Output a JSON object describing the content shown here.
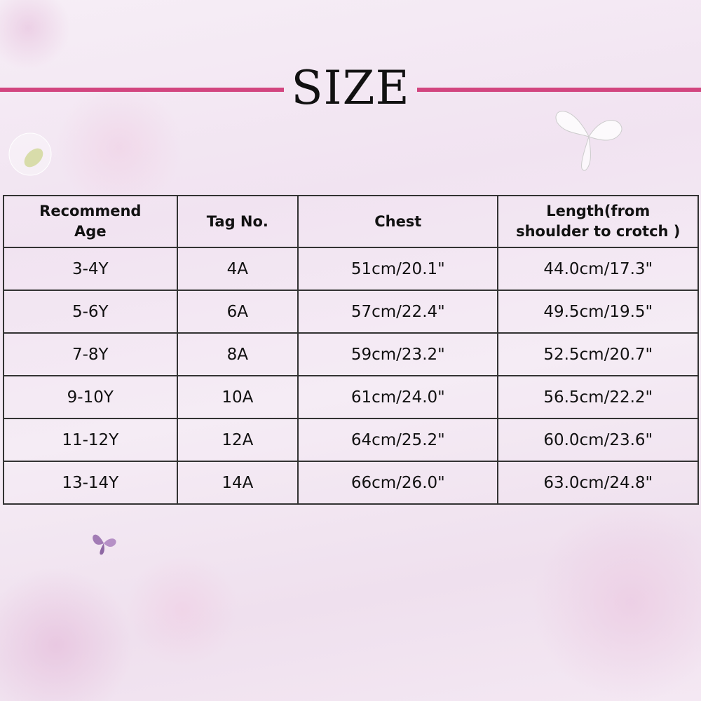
{
  "title": "SIZE",
  "accent_color": "#d2457f",
  "table": {
    "headers": [
      "Recommend\nAge",
      "Tag No.",
      "Chest",
      "Length(from\nshoulder to crotch )"
    ],
    "rows": [
      [
        "3-4Y",
        "4A",
        "51cm/20.1\"",
        "44.0cm/17.3\""
      ],
      [
        "5-6Y",
        "6A",
        "57cm/22.4\"",
        "49.5cm/19.5\""
      ],
      [
        "7-8Y",
        "8A",
        "59cm/23.2\"",
        "52.5cm/20.7\""
      ],
      [
        "9-10Y",
        "10A",
        "61cm/24.0\"",
        "56.5cm/22.2\""
      ],
      [
        "11-12Y",
        "12A",
        "64cm/25.2\"",
        "60.0cm/23.6\""
      ],
      [
        "13-14Y",
        "14A",
        "66cm/26.0\"",
        "63.0cm/24.8\""
      ]
    ]
  }
}
